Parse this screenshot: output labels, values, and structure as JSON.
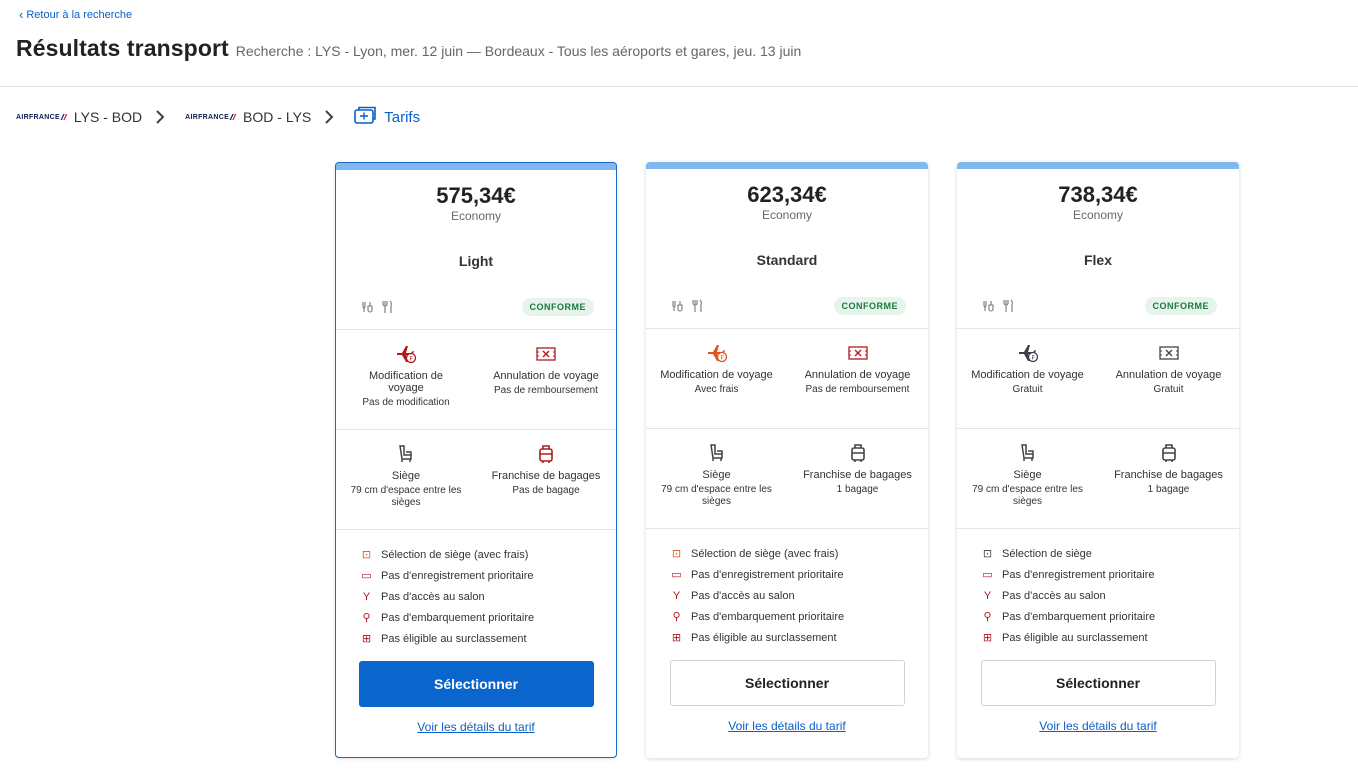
{
  "nav": {
    "back_label": "Retour à la recherche"
  },
  "header": {
    "title": "Résultats transport",
    "summary": "Recherche : LYS - Lyon, mer. 12 juin — Bordeaux - Tous les aéroports et gares, jeu. 13 juin"
  },
  "steps": [
    {
      "airline": "AIRFRANCE",
      "label": "LYS - BOD"
    },
    {
      "airline": "AIRFRANCE",
      "label": "BOD - LYS"
    },
    {
      "label": "Tarifs"
    }
  ],
  "fares": [
    {
      "price": "575,34€",
      "cabin": "Economy",
      "name": "Light",
      "badge": "CONFORME",
      "change_title": "Modification de voyage",
      "change_value": "Pas de modification",
      "cancel_title": "Annulation de voyage",
      "cancel_value": "Pas de remboursement",
      "seat_title": "Siège",
      "seat_value": "79 cm d'espace entre les sièges",
      "bag_title": "Franchise de bagages",
      "bag_value": "Pas de bagage",
      "benefits": [
        "Sélection de siège (avec frais)",
        "Pas d'enregistrement prioritaire",
        "Pas d'accès au salon",
        "Pas d'embarquement prioritaire",
        "Pas éligible au surclassement"
      ],
      "button": "Sélectionner",
      "details": "Voir les détails du tarif"
    },
    {
      "price": "623,34€",
      "cabin": "Economy",
      "name": "Standard",
      "badge": "CONFORME",
      "change_title": "Modification de voyage",
      "change_value": "Avec frais",
      "cancel_title": "Annulation de voyage",
      "cancel_value": "Pas de remboursement",
      "seat_title": "Siège",
      "seat_value": "79 cm d'espace entre les sièges",
      "bag_title": "Franchise de bagages",
      "bag_value": "1 bagage",
      "benefits": [
        "Sélection de siège (avec frais)",
        "Pas d'enregistrement prioritaire",
        "Pas d'accès au salon",
        "Pas d'embarquement prioritaire",
        "Pas éligible au surclassement"
      ],
      "button": "Sélectionner",
      "details": "Voir les détails du tarif"
    },
    {
      "price": "738,34€",
      "cabin": "Economy",
      "name": "Flex",
      "badge": "CONFORME",
      "change_title": "Modification de voyage",
      "change_value": "Gratuit",
      "cancel_title": "Annulation de voyage",
      "cancel_value": "Gratuit",
      "seat_title": "Siège",
      "seat_value": "79 cm d'espace entre les sièges",
      "bag_title": "Franchise de bagages",
      "bag_value": "1 bagage",
      "benefits": [
        "Sélection de siège",
        "Pas d'enregistrement prioritaire",
        "Pas d'accès au salon",
        "Pas d'embarquement prioritaire",
        "Pas éligible au surclassement"
      ],
      "button": "Sélectionner",
      "details": "Voir les détails du tarif"
    }
  ],
  "colors": {
    "accent": "#0a66cc",
    "selected_border": "#1a67c8",
    "topbar": "#7fb9ee",
    "badge_bg": "#e6f4ec",
    "badge_text": "#1a7a3d",
    "restricted": "#b0191e",
    "fee": "#e0541e"
  }
}
